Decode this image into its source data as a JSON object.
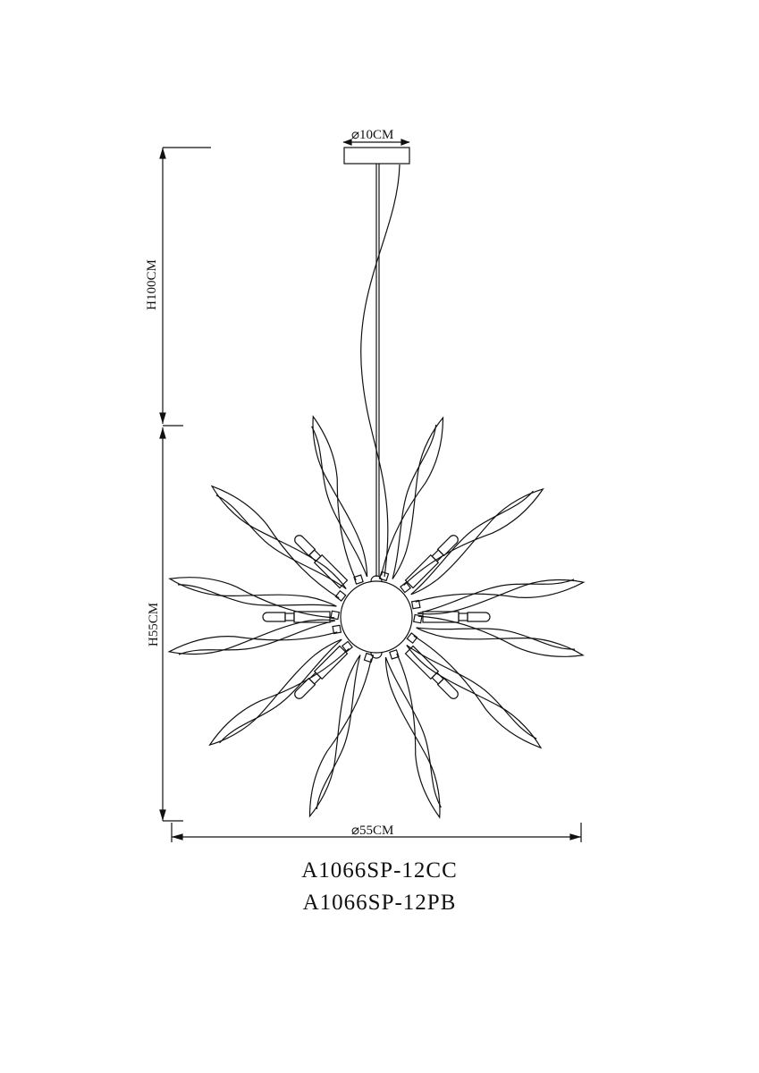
{
  "dimensions": {
    "canopy_diameter": "⌀10CM",
    "suspension_height": "H100CM",
    "body_height": "H55CM",
    "body_diameter": "⌀55CM"
  },
  "models": [
    "A1066SP-12CC",
    "A1066SP-12PB"
  ],
  "line_color": "#111111"
}
